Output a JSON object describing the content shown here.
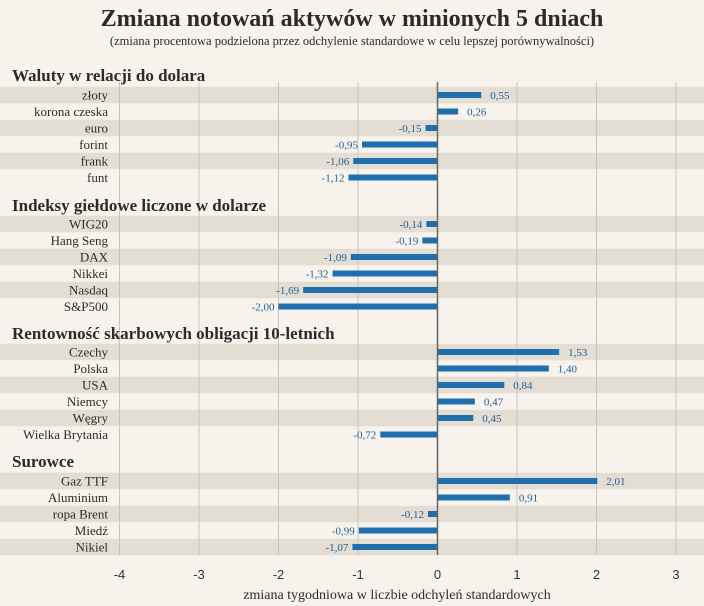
{
  "chart_data": {
    "type": "bar",
    "orientation": "horizontal",
    "title": "Zmiana notowań aktywów w minionych 5 dniach",
    "subtitle": "(zmiana procentowa podzielona przez odchylenie standardowe w celu lepszej porównywalności)",
    "xlabel": "zmiana tygodniowa w liczbie odchyleń standardowych",
    "xlim": [
      -4,
      3
    ],
    "xticks": [
      -4,
      -3,
      -2,
      -1,
      0,
      1,
      2,
      3
    ],
    "grid": true,
    "groups": [
      {
        "name": "Waluty w relacji do dolara",
        "categories": [
          "złoty",
          "korona czeska",
          "euro",
          "forint",
          "frank",
          "funt"
        ],
        "values": [
          0.55,
          0.26,
          -0.15,
          -0.95,
          -1.06,
          -1.12
        ],
        "labels": [
          "0,55",
          "0,26",
          "-0,15",
          "-0,95",
          "-1,06",
          "-1,12"
        ]
      },
      {
        "name": "Indeksy giełdowe liczone w dolarze",
        "categories": [
          "WIG20",
          "Hang Seng",
          "DAX",
          "Nikkei",
          "Nasdaq",
          "S&P500"
        ],
        "values": [
          -0.14,
          -0.19,
          -1.09,
          -1.32,
          -1.69,
          -2.0
        ],
        "labels": [
          "-0,14",
          "-0,19",
          "-1,09",
          "-1,32",
          "-1,69",
          "-2,00"
        ]
      },
      {
        "name": "Rentowność skarbowych obligacji 10-letnich",
        "categories": [
          "Czechy",
          "Polska",
          "USA",
          "Niemcy",
          "Węgry",
          "Wielka Brytania"
        ],
        "values": [
          1.53,
          1.4,
          0.84,
          0.47,
          0.45,
          -0.72
        ],
        "labels": [
          "1,53",
          "1,40",
          "0,84",
          "0,47",
          "0,45",
          "-0,72"
        ]
      },
      {
        "name": "Surowce",
        "categories": [
          "Gaz TTF",
          "Aluminium",
          "ropa Brent",
          "Miedź",
          "Nikiel"
        ],
        "values": [
          2.01,
          0.91,
          -0.12,
          -0.99,
          -1.07
        ],
        "labels": [
          "2,01",
          "0,91",
          "-0,12",
          "-0,99",
          "-1,07"
        ]
      }
    ],
    "colors": {
      "bar": "#1f6fad",
      "value_label": "#1a5f9c",
      "stripe": "#e4ddd3",
      "background": "#f7f3ec",
      "grid": "#c8c3bb",
      "zero_line": "#666666"
    }
  }
}
